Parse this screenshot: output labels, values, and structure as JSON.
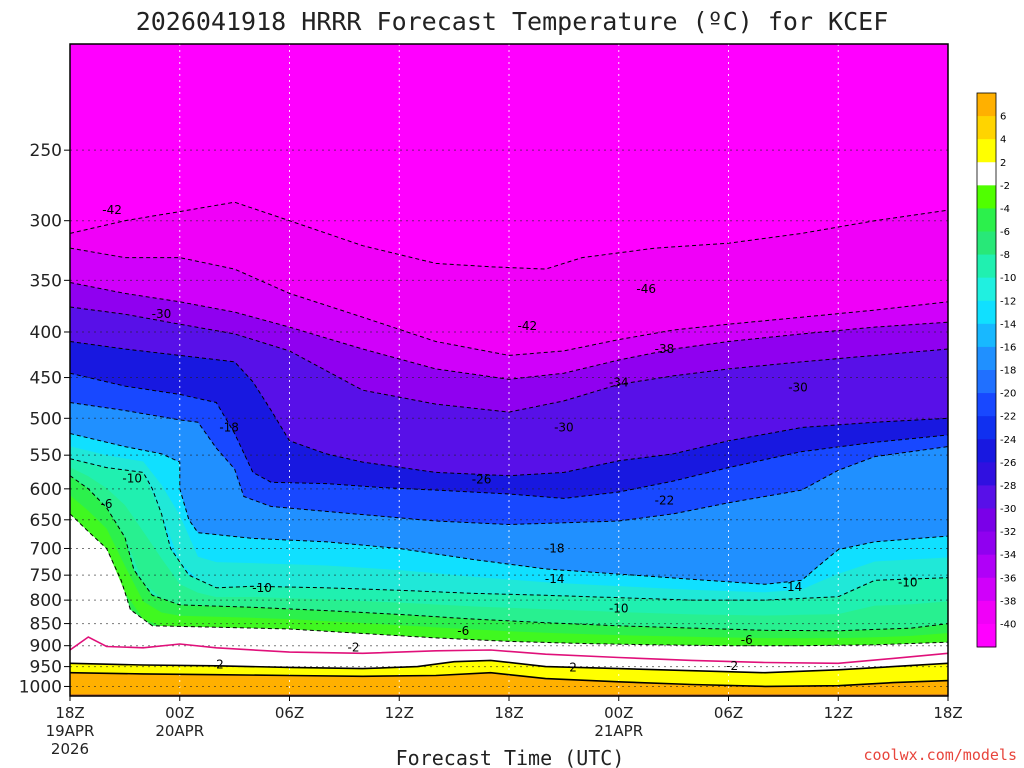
{
  "title": "2026041918 HRRR Forecast Temperature (ºC) for KCEF",
  "xlabel": "Forecast Time (UTC)",
  "credit": "coolwx.com/models",
  "colors": {
    "ground": "#a0522d",
    "freezing_line": "#e0107a",
    "background": "#ffffff"
  },
  "colorbar": {
    "labels": [
      "6",
      "4",
      "2",
      "-2",
      "-4",
      "-6",
      "-8",
      "-10",
      "-12",
      "-14",
      "-16",
      "-18",
      "-20",
      "-22",
      "-24",
      "-26",
      "-28",
      "-30",
      "-32",
      "-34",
      "-36",
      "-38",
      "-40"
    ],
    "colors": [
      "#ffb000",
      "#ffd400",
      "#ffff00",
      "#ffffff",
      "#50ff00",
      "#2cf04c",
      "#28e878",
      "#20f0b0",
      "#20f0e0",
      "#10e0ff",
      "#18b8ff",
      "#2090ff",
      "#2070ff",
      "#1848ff",
      "#1030f0",
      "#1818e0",
      "#3010e0",
      "#5810e8",
      "#7a00e8",
      "#9000f0",
      "#b000f8",
      "#d000fa",
      "#f000f8",
      "#ff00ff"
    ]
  },
  "chart_data": {
    "type": "heatmap",
    "title": "2026041918 HRRR Forecast Temperature (ºC) for KCEF",
    "xlabel": "Forecast Time (UTC)",
    "ylabel": "",
    "x_ticks": [
      {
        "hour": 0,
        "label": "18Z",
        "sub": [
          "19APR",
          "2026"
        ]
      },
      {
        "hour": 6,
        "label": "00Z",
        "sub": [
          "20APR"
        ]
      },
      {
        "hour": 12,
        "label": "06Z",
        "sub": []
      },
      {
        "hour": 18,
        "label": "12Z",
        "sub": []
      },
      {
        "hour": 24,
        "label": "18Z",
        "sub": []
      },
      {
        "hour": 30,
        "label": "00Z",
        "sub": [
          "21APR"
        ]
      },
      {
        "hour": 36,
        "label": "06Z",
        "sub": []
      },
      {
        "hour": 42,
        "label": "12Z",
        "sub": []
      },
      {
        "hour": 48,
        "label": "18Z",
        "sub": []
      }
    ],
    "x_range_hours": [
      0,
      48
    ],
    "y_ticks_hpa": [
      250,
      300,
      350,
      400,
      450,
      500,
      550,
      600,
      650,
      700,
      750,
      800,
      850,
      900,
      950,
      1000
    ],
    "y_range_hpa": [
      190,
      1025
    ],
    "units": "ºC",
    "contour_interval": 4,
    "isotherms": [
      {
        "temp": -42,
        "points": [
          [
            0,
            310
          ],
          [
            3,
            300
          ],
          [
            6,
            293
          ],
          [
            9,
            286
          ],
          [
            12,
            300
          ],
          [
            16,
            320
          ],
          [
            20,
            335
          ],
          [
            23,
            338
          ],
          [
            26,
            340
          ],
          [
            28,
            330
          ],
          [
            32,
            322
          ],
          [
            36,
            318
          ],
          [
            40,
            310
          ],
          [
            44,
            300
          ],
          [
            48,
            292
          ]
        ]
      },
      {
        "temp": -38,
        "points": [
          [
            0,
            322
          ],
          [
            3,
            330
          ],
          [
            6,
            330
          ],
          [
            9,
            340
          ],
          [
            12,
            362
          ],
          [
            16,
            385
          ],
          [
            20,
            410
          ],
          [
            24,
            425
          ],
          [
            27,
            420
          ],
          [
            30,
            408
          ],
          [
            33,
            398
          ],
          [
            36,
            392
          ],
          [
            40,
            385
          ],
          [
            44,
            378
          ],
          [
            48,
            370
          ]
        ]
      },
      {
        "temp": -34,
        "points": [
          [
            0,
            352
          ],
          [
            3,
            362
          ],
          [
            6,
            370
          ],
          [
            9,
            380
          ],
          [
            12,
            395
          ],
          [
            16,
            418
          ],
          [
            20,
            440
          ],
          [
            24,
            452
          ],
          [
            27,
            445
          ],
          [
            30,
            430
          ],
          [
            33,
            418
          ],
          [
            36,
            410
          ],
          [
            40,
            402
          ],
          [
            44,
            395
          ],
          [
            48,
            390
          ]
        ]
      },
      {
        "temp": -30,
        "points": [
          [
            0,
            375
          ],
          [
            3,
            382
          ],
          [
            6,
            392
          ],
          [
            9,
            402
          ],
          [
            12,
            420
          ],
          [
            14,
            442
          ],
          [
            16,
            465
          ],
          [
            20,
            482
          ],
          [
            24,
            492
          ],
          [
            27,
            478
          ],
          [
            30,
            458
          ],
          [
            33,
            448
          ],
          [
            36,
            440
          ],
          [
            40,
            432
          ],
          [
            44,
            425
          ],
          [
            48,
            418
          ]
        ]
      },
      {
        "temp": -26,
        "points": [
          [
            0,
            410
          ],
          [
            3,
            418
          ],
          [
            6,
            425
          ],
          [
            9,
            432
          ],
          [
            10,
            455
          ],
          [
            11,
            490
          ],
          [
            12,
            530
          ],
          [
            14,
            548
          ],
          [
            16,
            560
          ],
          [
            20,
            575
          ],
          [
            24,
            580
          ],
          [
            27,
            575
          ],
          [
            30,
            558
          ],
          [
            33,
            548
          ],
          [
            36,
            530
          ],
          [
            40,
            512
          ],
          [
            44,
            505
          ],
          [
            48,
            500
          ]
        ]
      },
      {
        "temp": -22,
        "points": [
          [
            0,
            445
          ],
          [
            3,
            460
          ],
          [
            6,
            470
          ],
          [
            8,
            480
          ],
          [
            9,
            520
          ],
          [
            10,
            575
          ],
          [
            11,
            590
          ],
          [
            14,
            592
          ],
          [
            17,
            598
          ],
          [
            20,
            602
          ],
          [
            24,
            608
          ],
          [
            27,
            615
          ],
          [
            30,
            605
          ],
          [
            33,
            588
          ],
          [
            36,
            568
          ],
          [
            40,
            545
          ],
          [
            44,
            532
          ],
          [
            48,
            522
          ]
        ]
      },
      {
        "temp": -18,
        "points": [
          [
            0,
            480
          ],
          [
            3,
            490
          ],
          [
            6,
            502
          ],
          [
            7,
            505
          ],
          [
            8,
            540
          ],
          [
            9,
            570
          ],
          [
            9.5,
            612
          ],
          [
            11,
            628
          ],
          [
            14,
            636
          ],
          [
            17,
            644
          ],
          [
            20,
            652
          ],
          [
            24,
            658
          ],
          [
            27,
            655
          ],
          [
            30,
            652
          ],
          [
            33,
            640
          ],
          [
            36,
            622
          ],
          [
            40,
            602
          ],
          [
            42,
            572
          ],
          [
            44,
            552
          ],
          [
            48,
            538
          ]
        ]
      },
      {
        "temp": -14,
        "points": [
          [
            0,
            520
          ],
          [
            3,
            538
          ],
          [
            5,
            548
          ],
          [
            6,
            560
          ],
          [
            6,
            600
          ],
          [
            6.5,
            650
          ],
          [
            7,
            672
          ],
          [
            10,
            682
          ],
          [
            14,
            688
          ],
          [
            18,
            700
          ],
          [
            22,
            720
          ],
          [
            26,
            738
          ],
          [
            30,
            748
          ],
          [
            34,
            758
          ],
          [
            38,
            768
          ],
          [
            40,
            760
          ],
          [
            41,
            730
          ],
          [
            42,
            702
          ],
          [
            44,
            688
          ],
          [
            48,
            678
          ]
        ]
      },
      {
        "temp": -10,
        "points": [
          [
            0,
            555
          ],
          [
            2,
            568
          ],
          [
            4,
            575
          ],
          [
            4.5,
            600
          ],
          [
            5,
            640
          ],
          [
            5.5,
            700
          ],
          [
            6.5,
            750
          ],
          [
            8,
            775
          ],
          [
            10,
            772
          ],
          [
            14,
            775
          ],
          [
            18,
            780
          ],
          [
            22,
            786
          ],
          [
            26,
            790
          ],
          [
            30,
            795
          ],
          [
            34,
            800
          ],
          [
            38,
            800
          ],
          [
            42,
            793
          ],
          [
            44,
            760
          ],
          [
            48,
            755
          ]
        ]
      },
      {
        "temp": -6,
        "points": [
          [
            0,
            580
          ],
          [
            1,
            600
          ],
          [
            2,
            630
          ],
          [
            3,
            680
          ],
          [
            3.5,
            740
          ],
          [
            4.5,
            790
          ],
          [
            6,
            810
          ],
          [
            10,
            815
          ],
          [
            14,
            822
          ],
          [
            18,
            830
          ],
          [
            22,
            840
          ],
          [
            26,
            848
          ],
          [
            30,
            855
          ],
          [
            34,
            860
          ],
          [
            38,
            865
          ],
          [
            42,
            866
          ],
          [
            46,
            860
          ],
          [
            48,
            850
          ]
        ]
      },
      {
        "temp": -2,
        "points": [
          [
            0,
            640
          ],
          [
            1,
            670
          ],
          [
            2,
            700
          ],
          [
            2.8,
            760
          ],
          [
            3.3,
            820
          ],
          [
            4.5,
            855
          ],
          [
            8,
            858
          ],
          [
            12,
            862
          ],
          [
            16,
            872
          ],
          [
            20,
            882
          ],
          [
            24,
            890
          ],
          [
            28,
            895
          ],
          [
            32,
            898
          ],
          [
            36,
            900
          ],
          [
            40,
            900
          ],
          [
            44,
            898
          ],
          [
            48,
            892
          ]
        ]
      },
      {
        "temp": 2,
        "points": [
          [
            0,
            942
          ],
          [
            4,
            946
          ],
          [
            8,
            948
          ],
          [
            12,
            952
          ],
          [
            16,
            955
          ],
          [
            19,
            950
          ],
          [
            21,
            938
          ],
          [
            23,
            935
          ],
          [
            26,
            950
          ],
          [
            30,
            955
          ],
          [
            34,
            960
          ],
          [
            38,
            965
          ],
          [
            42,
            958
          ],
          [
            45,
            950
          ],
          [
            48,
            942
          ]
        ]
      },
      {
        "temp": 6,
        "points": [
          [
            0,
            965
          ],
          [
            4,
            968
          ],
          [
            8,
            970
          ],
          [
            12,
            972
          ],
          [
            16,
            974
          ],
          [
            20,
            972
          ],
          [
            23,
            965
          ],
          [
            26,
            980
          ],
          [
            30,
            988
          ],
          [
            34,
            995
          ],
          [
            38,
            1000
          ],
          [
            42,
            998
          ],
          [
            45,
            990
          ],
          [
            48,
            985
          ]
        ]
      }
    ],
    "freezing_line": [
      [
        0,
        910
      ],
      [
        1,
        880
      ],
      [
        2,
        902
      ],
      [
        4,
        905
      ],
      [
        6,
        896
      ],
      [
        8,
        905
      ],
      [
        12,
        915
      ],
      [
        16,
        918
      ],
      [
        20,
        912
      ],
      [
        23,
        910
      ],
      [
        26,
        920
      ],
      [
        30,
        928
      ],
      [
        34,
        935
      ],
      [
        38,
        940
      ],
      [
        42,
        942
      ],
      [
        45,
        930
      ],
      [
        48,
        918
      ]
    ],
    "contour_labels": [
      {
        "text": "-42",
        "hour": 2.3,
        "hpa": 292
      },
      {
        "text": "-46",
        "hour": 31.5,
        "hpa": 358
      },
      {
        "text": "-42",
        "hour": 25.0,
        "hpa": 394
      },
      {
        "text": "-38",
        "hour": 32.5,
        "hpa": 418
      },
      {
        "text": "-34",
        "hour": 30.0,
        "hpa": 456
      },
      {
        "text": "-30",
        "hour": 5.0,
        "hpa": 382
      },
      {
        "text": "-30",
        "hour": 39.8,
        "hpa": 462
      },
      {
        "text": "-30",
        "hour": 27.0,
        "hpa": 512
      },
      {
        "text": "-26",
        "hour": 22.5,
        "hpa": 586
      },
      {
        "text": "-22",
        "hour": 32.5,
        "hpa": 618
      },
      {
        "text": "-18",
        "hour": 8.7,
        "hpa": 512
      },
      {
        "text": "-18",
        "hour": 26.5,
        "hpa": 700
      },
      {
        "text": "-14",
        "hour": 26.5,
        "hpa": 757
      },
      {
        "text": "-14",
        "hour": 39.5,
        "hpa": 773
      },
      {
        "text": "-10",
        "hour": 3.4,
        "hpa": 584
      },
      {
        "text": "-10",
        "hour": 10.5,
        "hpa": 775
      },
      {
        "text": "-10",
        "hour": 30.0,
        "hpa": 818
      },
      {
        "text": "-10",
        "hour": 45.8,
        "hpa": 764
      },
      {
        "text": "-6",
        "hour": 2.0,
        "hpa": 624
      },
      {
        "text": "-6",
        "hour": 21.5,
        "hpa": 867
      },
      {
        "text": "-6",
        "hour": 37.0,
        "hpa": 887
      },
      {
        "text": "-2",
        "hour": 15.5,
        "hpa": 904
      },
      {
        "text": "2",
        "hour": 8.2,
        "hpa": 945
      },
      {
        "text": "2",
        "hour": 27.5,
        "hpa": 952
      },
      {
        "text": "-2",
        "hour": 36.2,
        "hpa": 948
      }
    ],
    "ground_top_hpa": 1000
  }
}
